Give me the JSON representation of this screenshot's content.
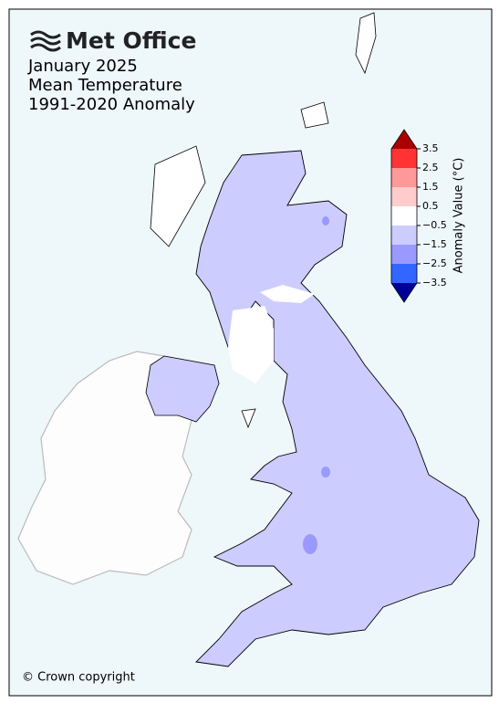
{
  "logo": "Met Office",
  "title_lines": [
    "January 2025",
    "Mean Temperature",
    "1991-2020 Anomaly"
  ],
  "colorbar": {
    "label": "Anomaly Value (°C)",
    "ticks": [
      3.5,
      2.5,
      1.5,
      0.5,
      {
        "value": -0.5,
        "label": "−0.5"
      },
      {
        "value": -1.5,
        "label": "−1.5"
      },
      {
        "value": -2.5,
        "label": "−2.5"
      },
      {
        "value": -3.5,
        "label": "−3.5"
      }
    ],
    "colors": [
      "#aa0000",
      "#ff3333",
      "#ff9999",
      "#ffcccc",
      "#ffffff",
      "#ccccff",
      "#9999ff",
      "#3366ff",
      "#000099"
    ]
  },
  "footer": "© Crown copyright"
}
